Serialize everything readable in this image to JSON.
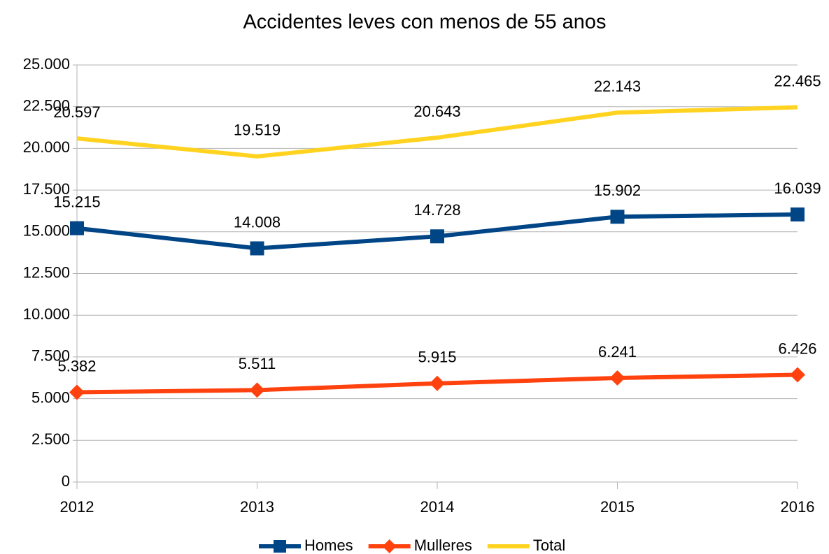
{
  "chart_data": {
    "type": "line",
    "title": "Accidentes leves con menos de 55 anos",
    "categories": [
      "2012",
      "2013",
      "2014",
      "2015",
      "2016"
    ],
    "series": [
      {
        "name": "Homes",
        "color": "#004586",
        "marker": "square",
        "values": [
          15215,
          14008,
          14728,
          15902,
          16039
        ],
        "value_labels": [
          "15.215",
          "14.008",
          "14.728",
          "15.902",
          "16.039"
        ]
      },
      {
        "name": "Mulleres",
        "color": "#ff420e",
        "marker": "diamond",
        "values": [
          5382,
          5511,
          5915,
          6241,
          6426
        ],
        "value_labels": [
          "5.382",
          "5.511",
          "5.915",
          "6.241",
          "6.426"
        ]
      },
      {
        "name": "Total",
        "color": "#ffd320",
        "marker": "none",
        "values": [
          20597,
          19519,
          20643,
          22143,
          22465
        ],
        "value_labels": [
          "20.597",
          "19.519",
          "20.643",
          "22.143",
          "22.465"
        ]
      }
    ],
    "ylim": [
      0,
      25000
    ],
    "yticks": [
      0,
      {
        "value": 2500,
        "label": "2.500"
      },
      {
        "value": 5000,
        "label": "5.000"
      },
      {
        "value": 7500,
        "label": "7.500"
      },
      {
        "value": 10000,
        "label": "10.000"
      },
      {
        "value": 12500,
        "label": "12.500"
      },
      {
        "value": 15000,
        "label": "15.000"
      },
      {
        "value": 17500,
        "label": "17.500"
      },
      {
        "value": 20000,
        "label": "20.000"
      },
      {
        "value": 22500,
        "label": "22.500"
      },
      {
        "value": 25000,
        "label": "25.000"
      }
    ],
    "grid": true,
    "legend": "bottom"
  }
}
